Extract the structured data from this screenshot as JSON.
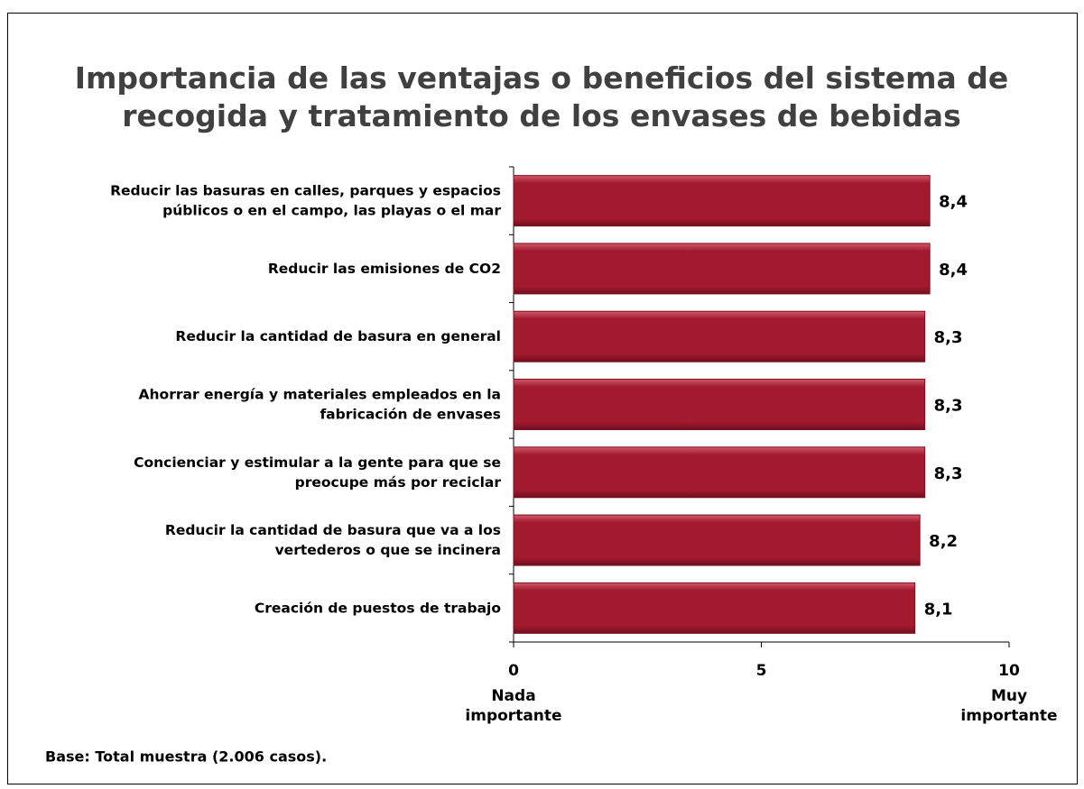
{
  "chart_data": {
    "type": "hbar",
    "title": "Importancia de las ventajas o beneficios del sistema de\nrecogida y tratamiento de los envases de bebidas",
    "categories": [
      "Reducir las basuras en calles, parques y espacios\npúblicos o en el campo, las playas o el mar",
      "Reducir las emisiones de CO2",
      "Reducir la cantidad de basura en general",
      "Ahorrar energía y materiales empleados en la\nfabricación de envases",
      "Concienciar y estimular a la gente para que se\npreocupe más por reciclar",
      "Reducir la cantidad de basura que va a los\nvertederos o que se incinera",
      "Creación de puestos de trabajo"
    ],
    "values": [
      8.4,
      8.4,
      8.3,
      8.3,
      8.3,
      8.2,
      8.1
    ],
    "value_labels": [
      "8,4",
      "8,4",
      "8,3",
      "8,3",
      "8,3",
      "8,2",
      "8,1"
    ],
    "color": "#a31a2e",
    "xlim": [
      0,
      10
    ],
    "xticks": [
      0,
      5,
      10
    ],
    "annotations": [
      "Nada\nimportante",
      "Muy\nimportante"
    ],
    "footnote": "Base: Total muestra (2.006 casos)."
  }
}
